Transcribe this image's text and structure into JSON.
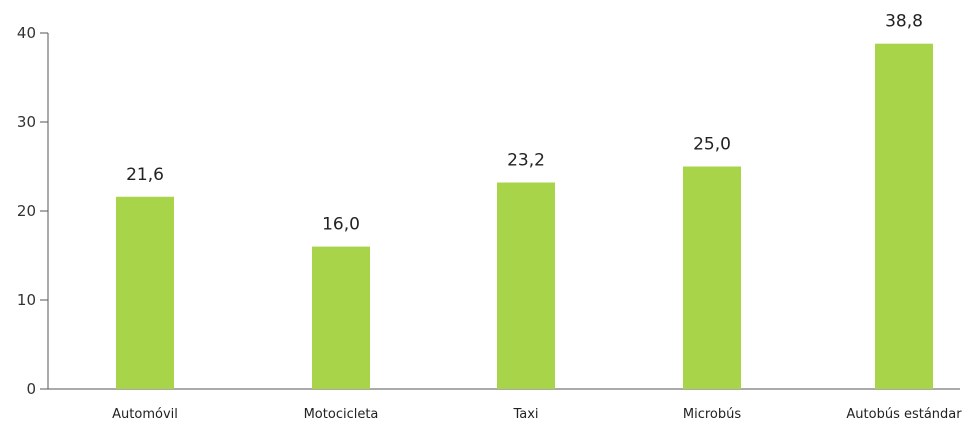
{
  "chart_data": {
    "type": "bar",
    "title": "",
    "xlabel": "",
    "ylabel": "",
    "categories": [
      "Automóvil",
      "Motocicleta",
      "Taxi",
      "Microbús",
      "Autobús estándar"
    ],
    "values": [
      21.6,
      16.0,
      23.2,
      25.0,
      38.8
    ],
    "value_labels": [
      "21,6",
      "16,0",
      "23,2",
      "25,0",
      "38,8"
    ],
    "ylim": [
      0,
      40
    ],
    "yticks": [
      0,
      10,
      20,
      30,
      40
    ],
    "ytick_labels": [
      "0",
      "10",
      "20",
      "30",
      "40"
    ],
    "bar_color": "#a8d44a",
    "grid": false,
    "legend": "none"
  }
}
